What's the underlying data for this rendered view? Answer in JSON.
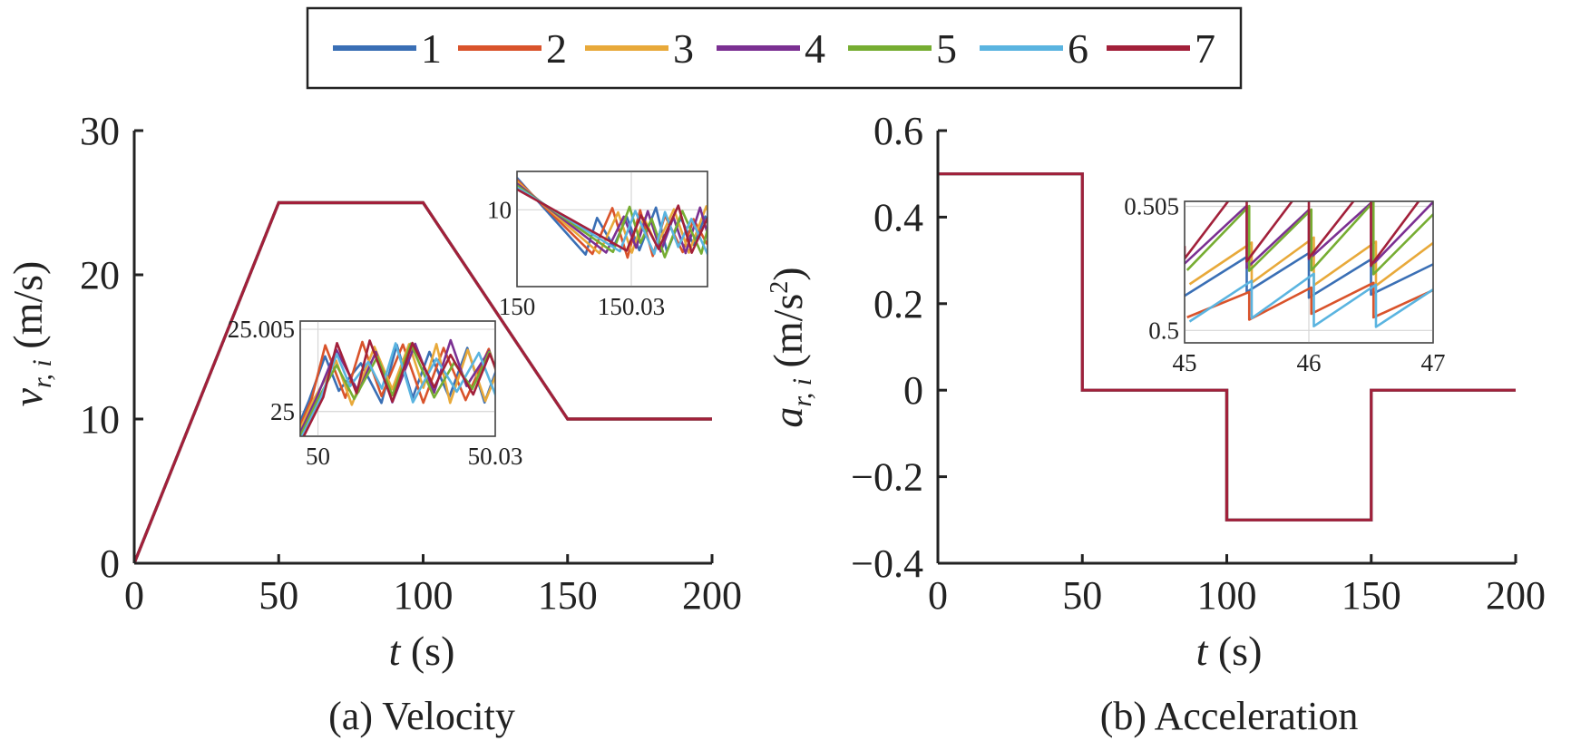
{
  "legend": {
    "entries": [
      "1",
      "2",
      "3",
      "4",
      "5",
      "6",
      "7"
    ],
    "colors": [
      "#3a6fb5",
      "#d9532b",
      "#e8a93a",
      "#7b3092",
      "#76ad32",
      "#5ab4e0",
      "#a2203a"
    ]
  },
  "chart_data": [
    {
      "type": "line",
      "caption": "(a) Velocity",
      "xlabel_var": "t",
      "xlabel_unit": "(s)",
      "ylabel_var": "v",
      "ylabel_sub": "r, i",
      "ylabel_unit": "(m/s)",
      "xlim": [
        0,
        200
      ],
      "ylim": [
        0,
        30
      ],
      "xticks": [
        0,
        50,
        100,
        150,
        200
      ],
      "yticks": [
        0,
        10,
        20,
        30
      ],
      "xtick_labels": [
        "0",
        "50",
        "100",
        "150",
        "200"
      ],
      "ytick_labels": [
        "0",
        "10",
        "20",
        "30"
      ],
      "series": [
        {
          "name": "1",
          "x": [
            0,
            50,
            100,
            150,
            200
          ],
          "y": [
            0,
            25,
            25,
            10,
            10
          ]
        },
        {
          "name": "2",
          "x": [
            0,
            50,
            100,
            150,
            200
          ],
          "y": [
            0,
            25,
            25,
            10,
            10
          ]
        },
        {
          "name": "3",
          "x": [
            0,
            50,
            100,
            150,
            200
          ],
          "y": [
            0,
            25,
            25,
            10,
            10
          ]
        },
        {
          "name": "4",
          "x": [
            0,
            50,
            100,
            150,
            200
          ],
          "y": [
            0,
            25,
            25,
            10,
            10
          ]
        },
        {
          "name": "5",
          "x": [
            0,
            50,
            100,
            150,
            200
          ],
          "y": [
            0,
            25,
            25,
            10,
            10
          ]
        },
        {
          "name": "6",
          "x": [
            0,
            50,
            100,
            150,
            200
          ],
          "y": [
            0,
            25,
            25,
            10,
            10
          ]
        },
        {
          "name": "7",
          "x": [
            0,
            50,
            100,
            150,
            200
          ],
          "y": [
            0,
            25,
            25,
            10,
            10
          ]
        }
      ],
      "insets": [
        {
          "xlim": [
            49.997,
            50.03
          ],
          "ylim": [
            24.9985,
            25.0055
          ],
          "xticks": [
            50,
            50.03
          ],
          "yticks": [
            25,
            25.005
          ],
          "xtick_labels": [
            "50",
            "50.03"
          ],
          "ytick_labels": [
            "25",
            "25.005"
          ]
        },
        {
          "xlim": [
            150,
            150.05
          ],
          "ylim": [
            9.988,
            10.006
          ],
          "xticks": [
            150,
            150.03
          ],
          "yticks": [
            10
          ],
          "xtick_labels": [
            "150",
            "150.03"
          ],
          "ytick_labels": [
            "10"
          ]
        }
      ]
    },
    {
      "type": "line",
      "caption": "(b) Acceleration",
      "xlabel_var": "t",
      "xlabel_unit": "(s)",
      "ylabel_var": "a",
      "ylabel_sub": "r, i",
      "ylabel_unit": "(m/s",
      "ylabel_unit_sup": "2",
      "ylabel_unit_end": ")",
      "xlim": [
        0,
        200
      ],
      "ylim": [
        -0.4,
        0.6
      ],
      "xticks": [
        0,
        50,
        100,
        150,
        200
      ],
      "yticks": [
        -0.4,
        -0.2,
        0,
        0.2,
        0.4,
        0.6
      ],
      "xtick_labels": [
        "0",
        "50",
        "100",
        "150",
        "200"
      ],
      "ytick_labels": [
        "−0.4",
        "−0.2",
        "0",
        "0.2",
        "0.4",
        "0.6"
      ],
      "series": [
        {
          "name": "1",
          "x": [
            0,
            50,
            50,
            100,
            100,
            150,
            150,
            200
          ],
          "y": [
            0.5,
            0.5,
            0,
            0,
            -0.3,
            -0.3,
            0,
            0
          ]
        },
        {
          "name": "2",
          "x": [
            0,
            50,
            50,
            100,
            100,
            150,
            150,
            200
          ],
          "y": [
            0.5,
            0.5,
            0,
            0,
            -0.3,
            -0.3,
            0,
            0
          ]
        },
        {
          "name": "3",
          "x": [
            0,
            50,
            50,
            100,
            100,
            150,
            150,
            200
          ],
          "y": [
            0.5,
            0.5,
            0,
            0,
            -0.3,
            -0.3,
            0,
            0
          ]
        },
        {
          "name": "4",
          "x": [
            0,
            50,
            50,
            100,
            100,
            150,
            150,
            200
          ],
          "y": [
            0.5,
            0.5,
            0,
            0,
            -0.3,
            -0.3,
            0,
            0
          ]
        },
        {
          "name": "5",
          "x": [
            0,
            50,
            50,
            100,
            100,
            150,
            150,
            200
          ],
          "y": [
            0.5,
            0.5,
            0,
            0,
            -0.3,
            -0.3,
            0,
            0
          ]
        },
        {
          "name": "6",
          "x": [
            0,
            50,
            50,
            100,
            100,
            150,
            150,
            200
          ],
          "y": [
            0.5,
            0.5,
            0,
            0,
            -0.3,
            -0.3,
            0,
            0
          ]
        },
        {
          "name": "7",
          "x": [
            0,
            50,
            50,
            100,
            100,
            150,
            150,
            200
          ],
          "y": [
            0.5,
            0.5,
            0,
            0,
            -0.3,
            -0.3,
            0,
            0
          ]
        }
      ],
      "insets": [
        {
          "xlim": [
            45,
            47
          ],
          "ylim": [
            0.4995,
            0.5052
          ],
          "xticks": [
            45,
            46,
            47
          ],
          "yticks": [
            0.5,
            0.505
          ],
          "xtick_labels": [
            "45",
            "46",
            "47"
          ],
          "ytick_labels": [
            "0.5",
            "0.505"
          ]
        }
      ]
    }
  ]
}
